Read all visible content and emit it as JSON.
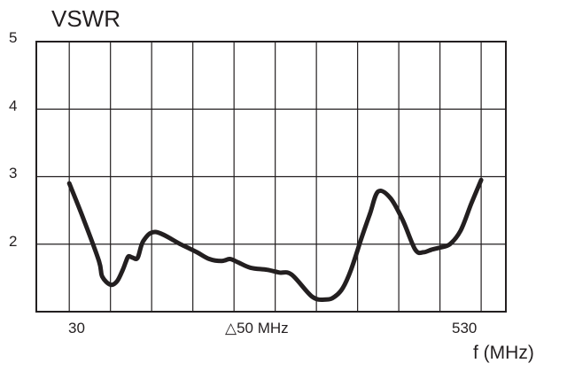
{
  "chart_data": {
    "type": "line",
    "title": "",
    "ylabel": "VSWR",
    "xlabel": "f (MHz)",
    "ylim": [
      1,
      5
    ],
    "xlim": [
      -10,
      560
    ],
    "grid": true,
    "y_ticks": [
      "5",
      "4",
      "3",
      "2"
    ],
    "x_ticks": [
      "30",
      "530"
    ],
    "x_step_label": "△50 MHz",
    "series": [
      {
        "name": "",
        "color": "#231f20",
        "x": [
          30,
          48,
          66,
          70,
          80,
          88,
          95,
          99,
          102,
          107,
          113,
          120,
          135,
          165,
          185,
          200,
          215,
          225,
          235,
          250,
          270,
          285,
          300,
          325,
          342,
          352,
          362,
          372,
          385,
          395,
          405,
          420,
          435,
          450,
          460,
          470,
          480,
          492,
          505,
          518,
          530
        ],
        "y": [
          2.9,
          2.35,
          1.75,
          1.52,
          1.4,
          1.45,
          1.62,
          1.75,
          1.82,
          1.8,
          1.8,
          2.05,
          2.18,
          2.0,
          1.88,
          1.78,
          1.75,
          1.78,
          1.73,
          1.65,
          1.62,
          1.58,
          1.55,
          1.22,
          1.18,
          1.22,
          1.35,
          1.62,
          2.1,
          2.45,
          2.78,
          2.68,
          2.35,
          1.92,
          1.88,
          1.92,
          1.95,
          2.0,
          2.2,
          2.6,
          2.95
        ]
      }
    ]
  }
}
